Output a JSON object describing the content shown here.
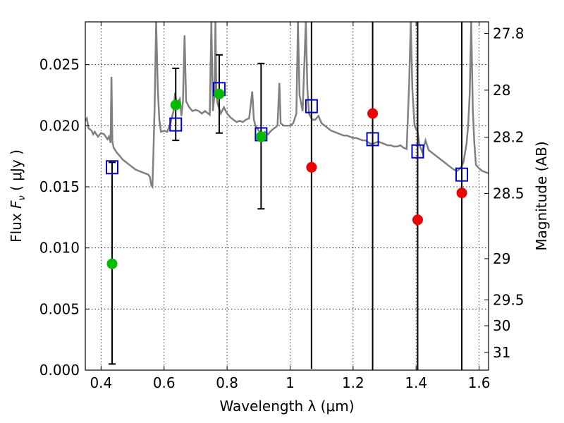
{
  "chart_data": {
    "type": "scatter",
    "title": "",
    "xlabel": "Wavelength  λ (μm)",
    "ylabel_left_prefix": "Flux  ",
    "ylabel_left_var": "F",
    "ylabel_left_sub": "ν",
    "ylabel_left_unit": " (  μJy )",
    "ylabel_right": "Magnitude (AB)",
    "xlim": [
      0.35,
      1.63
    ],
    "ylim": [
      0.0,
      0.0285
    ],
    "grid": true,
    "grid_style": "dotted",
    "x_ticks": [
      {
        "v": 0.4,
        "label": "0.4"
      },
      {
        "v": 0.6,
        "label": "0.6"
      },
      {
        "v": 0.8,
        "label": "0.8"
      },
      {
        "v": 1.0,
        "label": "1"
      },
      {
        "v": 1.2,
        "label": "1.2"
      },
      {
        "v": 1.4,
        "label": "1.4"
      },
      {
        "v": 1.6,
        "label": "1.6"
      }
    ],
    "y_ticks": [
      {
        "v": 0.0,
        "label": "0.000"
      },
      {
        "v": 0.005,
        "label": "0.005"
      },
      {
        "v": 0.01,
        "label": "0.010"
      },
      {
        "v": 0.015,
        "label": "0.015"
      },
      {
        "v": 0.02,
        "label": "0.020"
      },
      {
        "v": 0.025,
        "label": "0.025"
      }
    ],
    "mag_ticks": [
      {
        "mag": 27.8,
        "label": "27.8"
      },
      {
        "mag": 28.0,
        "label": "28"
      },
      {
        "mag": 28.2,
        "label": "28.2"
      },
      {
        "mag": 28.5,
        "label": "28.5"
      },
      {
        "mag": 29.0,
        "label": "29"
      },
      {
        "mag": 29.5,
        "label": "29.5"
      },
      {
        "mag": 30.0,
        "label": "30"
      },
      {
        "mag": 31.0,
        "label": "31"
      }
    ],
    "colors": {
      "spectrum": "#808080",
      "green": "#00bb00",
      "red": "#ee0000",
      "model_box": "#0000cc",
      "errorbar": "#000000"
    },
    "spectrum": [
      [
        0.35,
        0.0204
      ],
      [
        0.355,
        0.0206
      ],
      [
        0.36,
        0.0198
      ],
      [
        0.37,
        0.0196
      ],
      [
        0.375,
        0.0193
      ],
      [
        0.38,
        0.0195
      ],
      [
        0.39,
        0.0191
      ],
      [
        0.4,
        0.0194
      ],
      [
        0.41,
        0.0193
      ],
      [
        0.42,
        0.0189
      ],
      [
        0.425,
        0.0191
      ],
      [
        0.43,
        0.0186
      ],
      [
        0.433,
        0.024
      ],
      [
        0.436,
        0.0187
      ],
      [
        0.44,
        0.0182
      ],
      [
        0.45,
        0.0178
      ],
      [
        0.46,
        0.0175
      ],
      [
        0.47,
        0.0172
      ],
      [
        0.48,
        0.017
      ],
      [
        0.49,
        0.0168
      ],
      [
        0.5,
        0.0166
      ],
      [
        0.51,
        0.0164
      ],
      [
        0.52,
        0.0163
      ],
      [
        0.53,
        0.0162
      ],
      [
        0.54,
        0.0161
      ],
      [
        0.55,
        0.016
      ],
      [
        0.555,
        0.0158
      ],
      [
        0.56,
        0.0151
      ],
      [
        0.563,
        0.015
      ],
      [
        0.566,
        0.0175
      ],
      [
        0.57,
        0.0215
      ],
      [
        0.575,
        0.0285
      ],
      [
        0.58,
        0.023
      ],
      [
        0.585,
        0.0205
      ],
      [
        0.59,
        0.0195
      ],
      [
        0.6,
        0.0196
      ],
      [
        0.61,
        0.0195
      ],
      [
        0.62,
        0.0202
      ],
      [
        0.63,
        0.0212
      ],
      [
        0.635,
        0.0227
      ],
      [
        0.64,
        0.0218
      ],
      [
        0.65,
        0.0222
      ],
      [
        0.655,
        0.0208
      ],
      [
        0.66,
        0.022
      ],
      [
        0.665,
        0.0274
      ],
      [
        0.67,
        0.022
      ],
      [
        0.68,
        0.0215
      ],
      [
        0.69,
        0.0212
      ],
      [
        0.7,
        0.0213
      ],
      [
        0.71,
        0.0212
      ],
      [
        0.72,
        0.021
      ],
      [
        0.73,
        0.0212
      ],
      [
        0.74,
        0.021
      ],
      [
        0.745,
        0.0209
      ],
      [
        0.75,
        0.0285
      ],
      [
        0.755,
        0.0212
      ],
      [
        0.76,
        0.0225
      ],
      [
        0.763,
        0.0285
      ],
      [
        0.766,
        0.0225
      ],
      [
        0.77,
        0.0218
      ],
      [
        0.78,
        0.021
      ],
      [
        0.79,
        0.0215
      ],
      [
        0.8,
        0.021
      ],
      [
        0.81,
        0.0207
      ],
      [
        0.82,
        0.0205
      ],
      [
        0.83,
        0.0203
      ],
      [
        0.84,
        0.0204
      ],
      [
        0.85,
        0.0203
      ],
      [
        0.86,
        0.0205
      ],
      [
        0.87,
        0.0206
      ],
      [
        0.88,
        0.0228
      ],
      [
        0.885,
        0.0205
      ],
      [
        0.89,
        0.02
      ],
      [
        0.9,
        0.0196
      ],
      [
        0.905,
        0.0195
      ],
      [
        0.91,
        0.0192
      ],
      [
        0.92,
        0.0195
      ],
      [
        0.93,
        0.0193
      ],
      [
        0.94,
        0.0196
      ],
      [
        0.95,
        0.0198
      ],
      [
        0.96,
        0.02
      ],
      [
        0.966,
        0.0235
      ],
      [
        0.97,
        0.0202
      ],
      [
        0.98,
        0.02
      ],
      [
        0.99,
        0.02
      ],
      [
        1.0,
        0.02
      ],
      [
        1.01,
        0.0202
      ],
      [
        1.02,
        0.021
      ],
      [
        1.025,
        0.0285
      ],
      [
        1.03,
        0.0225
      ],
      [
        1.04,
        0.0212
      ],
      [
        1.05,
        0.0285
      ],
      [
        1.055,
        0.023
      ],
      [
        1.06,
        0.021
      ],
      [
        1.07,
        0.0205
      ],
      [
        1.08,
        0.0205
      ],
      [
        1.09,
        0.0208
      ],
      [
        1.1,
        0.0202
      ],
      [
        1.11,
        0.02
      ],
      [
        1.12,
        0.0198
      ],
      [
        1.13,
        0.0196
      ],
      [
        1.14,
        0.0195
      ],
      [
        1.15,
        0.0194
      ],
      [
        1.16,
        0.0193
      ],
      [
        1.17,
        0.0192
      ],
      [
        1.18,
        0.0192
      ],
      [
        1.19,
        0.0191
      ],
      [
        1.2,
        0.019
      ],
      [
        1.21,
        0.019
      ],
      [
        1.22,
        0.0189
      ],
      [
        1.23,
        0.0188
      ],
      [
        1.24,
        0.0188
      ],
      [
        1.25,
        0.0186
      ],
      [
        1.26,
        0.0185
      ],
      [
        1.27,
        0.0186
      ],
      [
        1.28,
        0.0187
      ],
      [
        1.29,
        0.0186
      ],
      [
        1.3,
        0.0185
      ],
      [
        1.31,
        0.0184
      ],
      [
        1.32,
        0.0184
      ],
      [
        1.33,
        0.0183
      ],
      [
        1.34,
        0.0183
      ],
      [
        1.35,
        0.0184
      ],
      [
        1.36,
        0.0182
      ],
      [
        1.37,
        0.0181
      ],
      [
        1.378,
        0.0235
      ],
      [
        1.383,
        0.0285
      ],
      [
        1.388,
        0.023
      ],
      [
        1.395,
        0.02
      ],
      [
        1.405,
        0.0195
      ],
      [
        1.41,
        0.0185
      ],
      [
        1.42,
        0.0178
      ],
      [
        1.43,
        0.0188
      ],
      [
        1.44,
        0.018
      ],
      [
        1.45,
        0.0178
      ],
      [
        1.46,
        0.0176
      ],
      [
        1.47,
        0.0174
      ],
      [
        1.48,
        0.0172
      ],
      [
        1.49,
        0.017
      ],
      [
        1.5,
        0.0168
      ],
      [
        1.51,
        0.0166
      ],
      [
        1.52,
        0.0164
      ],
      [
        1.53,
        0.0163
      ],
      [
        1.54,
        0.0165
      ],
      [
        1.55,
        0.017
      ],
      [
        1.56,
        0.0185
      ],
      [
        1.565,
        0.02
      ],
      [
        1.57,
        0.0225
      ],
      [
        1.575,
        0.0285
      ],
      [
        1.58,
        0.0212
      ],
      [
        1.585,
        0.0185
      ],
      [
        1.59,
        0.0168
      ],
      [
        1.6,
        0.0165
      ],
      [
        1.61,
        0.0163
      ],
      [
        1.62,
        0.0162
      ],
      [
        1.63,
        0.0161
      ]
    ],
    "errorbars": [
      {
        "x": 0.435,
        "low": 0.0005,
        "high": 0.017
      },
      {
        "x": 0.637,
        "low": 0.0188,
        "high": 0.0247
      },
      {
        "x": 0.775,
        "low": 0.0194,
        "high": 0.0258
      },
      {
        "x": 0.908,
        "low": 0.0132,
        "high": 0.0251
      },
      {
        "x": 1.068,
        "low": 0.0001,
        "high": 0.0285
      },
      {
        "x": 1.262,
        "low": 0.0,
        "high": 0.0285
      },
      {
        "x": 1.405,
        "low": 0.0,
        "high": 0.0285
      },
      {
        "x": 1.545,
        "low": 0.0,
        "high": 0.0285
      }
    ],
    "green_points": [
      {
        "x": 0.435,
        "y": 0.0087
      },
      {
        "x": 0.637,
        "y": 0.0217
      },
      {
        "x": 0.775,
        "y": 0.0226
      },
      {
        "x": 0.908,
        "y": 0.0191
      }
    ],
    "red_points": [
      {
        "x": 1.068,
        "y": 0.0166
      },
      {
        "x": 1.262,
        "y": 0.021
      },
      {
        "x": 1.405,
        "y": 0.0123
      },
      {
        "x": 1.545,
        "y": 0.0145
      }
    ],
    "model_boxes": [
      {
        "x": 0.435,
        "y": 0.0166
      },
      {
        "x": 0.637,
        "y": 0.0201
      },
      {
        "x": 0.775,
        "y": 0.023
      },
      {
        "x": 0.908,
        "y": 0.0193
      },
      {
        "x": 1.068,
        "y": 0.0216
      },
      {
        "x": 1.262,
        "y": 0.0189
      },
      {
        "x": 1.405,
        "y": 0.0179
      },
      {
        "x": 1.545,
        "y": 0.016
      }
    ]
  }
}
